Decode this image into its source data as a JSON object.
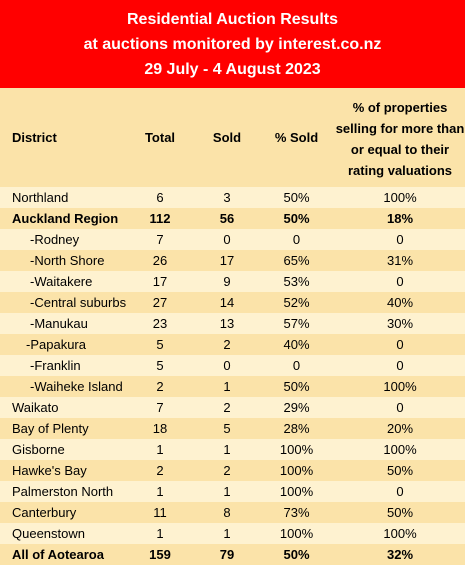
{
  "title": {
    "line1": "Residential Auction Results",
    "line2": "at auctions monitored by interest.co.nz",
    "line3": "29 July - 4 August 2023"
  },
  "columns": {
    "district": "District",
    "total": "Total",
    "sold": "Sold",
    "pct_sold": "% Sold",
    "pct_rating": "% of properties selling for more than or equal to their rating valuations"
  },
  "rows": [
    {
      "district": "Northland",
      "total": "6",
      "sold": "3",
      "pct_sold": "50%",
      "pct_rating": "100%"
    },
    {
      "district": "Auckland Region",
      "total": "112",
      "sold": "56",
      "pct_sold": "50%",
      "pct_rating": "18%"
    },
    {
      "district": "-Rodney",
      "total": "7",
      "sold": "0",
      "pct_sold": "0",
      "pct_rating": "0"
    },
    {
      "district": "-North Shore",
      "total": "26",
      "sold": "17",
      "pct_sold": "65%",
      "pct_rating": "31%"
    },
    {
      "district": "-Waitakere",
      "total": "17",
      "sold": "9",
      "pct_sold": "53%",
      "pct_rating": "0"
    },
    {
      "district": "-Central suburbs",
      "total": "27",
      "sold": "14",
      "pct_sold": "52%",
      "pct_rating": "40%"
    },
    {
      "district": "-Manukau",
      "total": "23",
      "sold": "13",
      "pct_sold": "57%",
      "pct_rating": "30%"
    },
    {
      "district": "-Papakura",
      "total": "5",
      "sold": "2",
      "pct_sold": "40%",
      "pct_rating": "0"
    },
    {
      "district": "-Franklin",
      "total": "5",
      "sold": "0",
      "pct_sold": "0",
      "pct_rating": "0"
    },
    {
      "district": "-Waiheke Island",
      "total": "2",
      "sold": "1",
      "pct_sold": "50%",
      "pct_rating": "100%"
    },
    {
      "district": "Waikato",
      "total": "7",
      "sold": "2",
      "pct_sold": "29%",
      "pct_rating": "0"
    },
    {
      "district": "Bay of Plenty",
      "total": "18",
      "sold": "5",
      "pct_sold": "28%",
      "pct_rating": "20%"
    },
    {
      "district": "Gisborne",
      "total": "1",
      "sold": "1",
      "pct_sold": "100%",
      "pct_rating": "100%"
    },
    {
      "district": "Hawke's Bay",
      "total": "2",
      "sold": "2",
      "pct_sold": "100%",
      "pct_rating": "50%"
    },
    {
      "district": "Palmerston North",
      "total": "1",
      "sold": "1",
      "pct_sold": "100%",
      "pct_rating": "0"
    },
    {
      "district": "Canterbury",
      "total": "11",
      "sold": "8",
      "pct_sold": "73%",
      "pct_rating": "50%"
    },
    {
      "district": "Queenstown",
      "total": "1",
      "sold": "1",
      "pct_sold": "100%",
      "pct_rating": "100%"
    },
    {
      "district": "All of Aotearoa",
      "total": "159",
      "sold": "79",
      "pct_sold": "50%",
      "pct_rating": "32%"
    }
  ],
  "colors": {
    "header_bg": "#ff0000",
    "header_text": "#ffffff",
    "row_light": "#fef2d0",
    "row_dark": "#fbe3a9"
  }
}
